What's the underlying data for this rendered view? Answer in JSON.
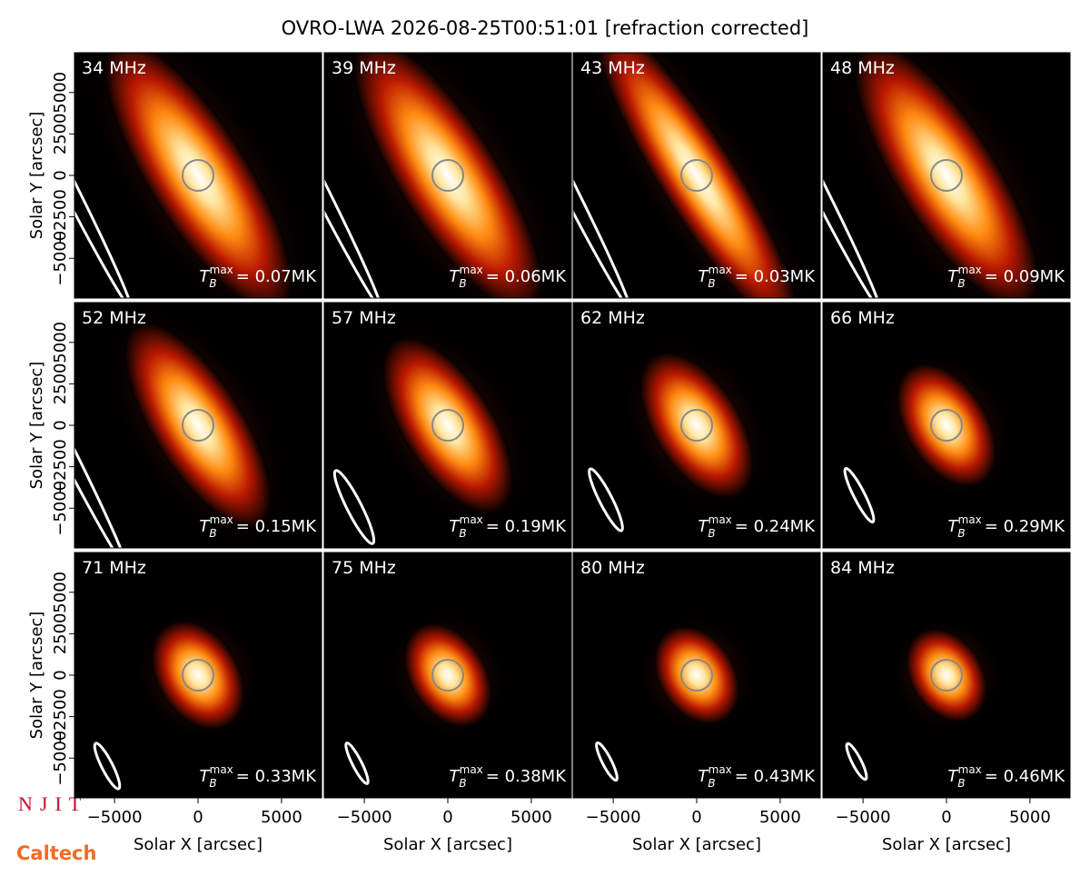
{
  "title": "OVRO-LWA 2026-08-25T00:51:01 [refraction corrected]",
  "annotation_symbol": {
    "base": "T",
    "sub": "B",
    "sup": "max"
  },
  "logos": [
    "NJIT",
    "Caltech"
  ],
  "chart_data": [
    {
      "type": "image",
      "label": "34 MHz",
      "annotation": "= 0.07MK",
      "xlim": [
        -7400,
        7400
      ],
      "ylim": [
        -7400,
        7400
      ],
      "ylabel": "Solar Y [arcsec]",
      "yticks": [
        {
          "value": -5000,
          "label": "−5000"
        },
        {
          "value": -2500,
          "label": "−2500"
        },
        0,
        2500,
        5000
      ]
    },
    {
      "type": "image",
      "label": "39 MHz",
      "annotation": "= 0.06MK",
      "xlim": [
        -7400,
        7400
      ],
      "ylim": [
        -7400,
        7400
      ]
    },
    {
      "type": "image",
      "label": "43 MHz",
      "annotation": "= 0.03MK",
      "xlim": [
        -7400,
        7400
      ],
      "ylim": [
        -7400,
        7400
      ]
    },
    {
      "type": "image",
      "label": "48 MHz",
      "annotation": "= 0.09MK",
      "xlim": [
        -7400,
        7400
      ],
      "ylim": [
        -7400,
        7400
      ]
    },
    {
      "type": "image",
      "label": "52 MHz",
      "annotation": "= 0.15MK",
      "xlim": [
        -7400,
        7400
      ],
      "ylim": [
        -7400,
        7400
      ],
      "ylabel": "Solar Y [arcsec]",
      "yticks": [
        {
          "value": -5000,
          "label": "−5000"
        },
        {
          "value": -2500,
          "label": "−2500"
        },
        0,
        2500,
        5000
      ]
    },
    {
      "type": "image",
      "label": "57 MHz",
      "annotation": "= 0.19MK",
      "xlim": [
        -7400,
        7400
      ],
      "ylim": [
        -7400,
        7400
      ]
    },
    {
      "type": "image",
      "label": "62 MHz",
      "annotation": "= 0.24MK",
      "xlim": [
        -7400,
        7400
      ],
      "ylim": [
        -7400,
        7400
      ]
    },
    {
      "type": "image",
      "label": "66 MHz",
      "annotation": "= 0.29MK",
      "xlim": [
        -7400,
        7400
      ],
      "ylim": [
        -7400,
        7400
      ]
    },
    {
      "type": "image",
      "label": "71 MHz",
      "annotation": "= 0.33MK",
      "xlim": [
        -7400,
        7400
      ],
      "ylim": [
        -7400,
        7400
      ],
      "ylabel": "Solar Y [arcsec]",
      "yticks": [
        {
          "value": -5000,
          "label": "−5000"
        },
        {
          "value": -2500,
          "label": "−2500"
        },
        0,
        2500,
        5000
      ],
      "xlabel": "Solar X [arcsec]",
      "xticks": [
        {
          "value": -5000,
          "label": "−5000"
        },
        0,
        5000
      ]
    },
    {
      "type": "image",
      "label": "75 MHz",
      "annotation": "= 0.38MK",
      "xlim": [
        -7400,
        7400
      ],
      "ylim": [
        -7400,
        7400
      ],
      "xlabel": "Solar X [arcsec]",
      "xticks": [
        {
          "value": -5000,
          "label": "−5000"
        },
        0,
        5000
      ]
    },
    {
      "type": "image",
      "label": "80 MHz",
      "annotation": "= 0.43MK",
      "xlim": [
        -7400,
        7400
      ],
      "ylim": [
        -7400,
        7400
      ],
      "xlabel": "Solar X [arcsec]",
      "xticks": [
        {
          "value": -5000,
          "label": "−5000"
        },
        0,
        5000
      ]
    },
    {
      "type": "image",
      "label": "84 MHz",
      "annotation": "= 0.46MK",
      "xlim": [
        -7400,
        7400
      ],
      "ylim": [
        -7400,
        7400
      ],
      "xlabel": "Solar X [arcsec]",
      "xticks": [
        {
          "value": -5000,
          "label": "−5000"
        },
        0,
        5000
      ]
    }
  ]
}
